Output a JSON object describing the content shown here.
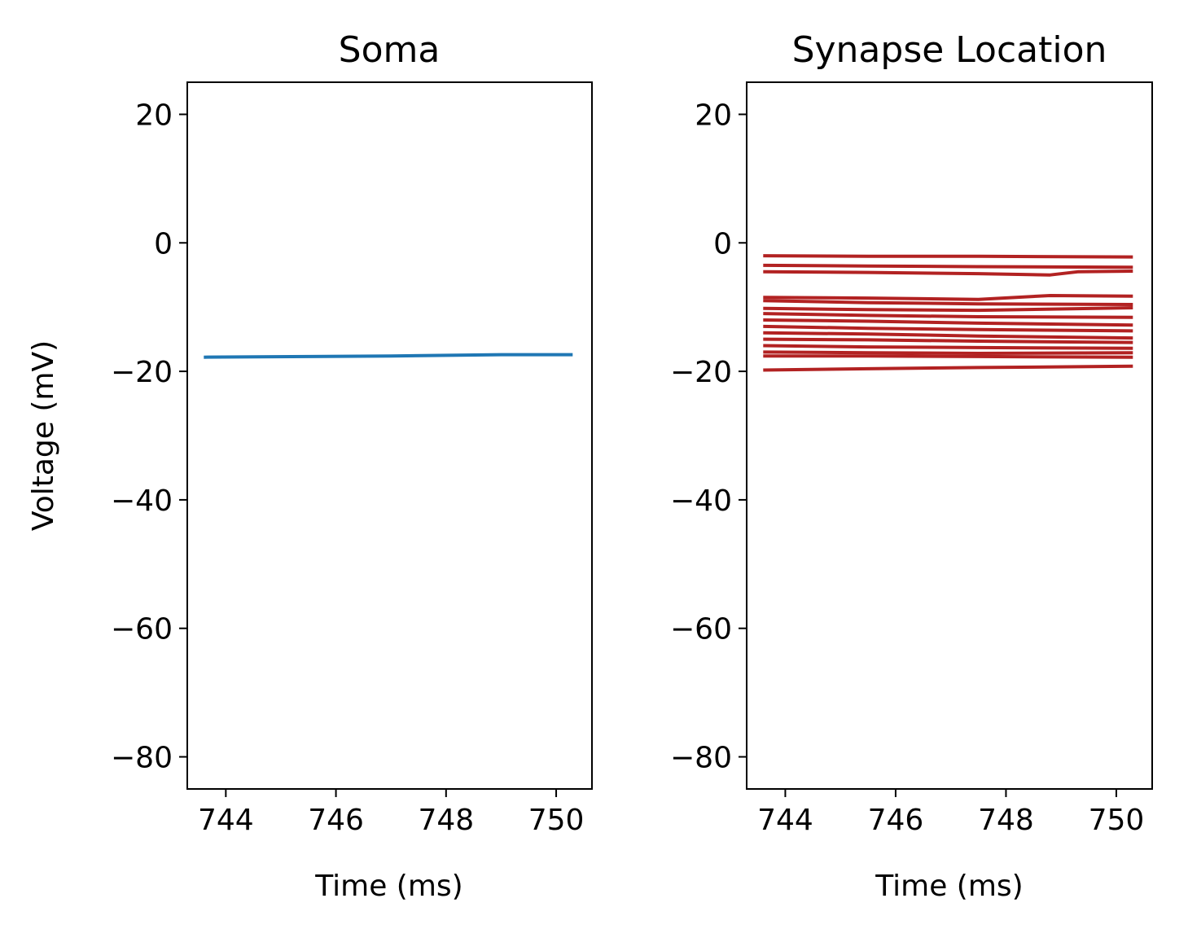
{
  "chart_data": [
    {
      "type": "line",
      "title": "Soma",
      "xlabel": "Time (ms)",
      "ylabel": "Voltage (mV)",
      "xlim": [
        743.3,
        750.65
      ],
      "ylim": [
        -85,
        25
      ],
      "xticks": [
        744,
        746,
        748,
        750
      ],
      "xtick_labels": [
        "744",
        "746",
        "748",
        "750"
      ],
      "yticks": [
        20,
        0,
        -20,
        -40,
        -60,
        -80
      ],
      "ytick_labels": [
        "20",
        "0",
        "−20",
        "−40",
        "−60",
        "−80"
      ],
      "grid": false,
      "series": [
        {
          "color": "#1f77b4",
          "x": [
            743.6,
            745.5,
            747.0,
            749.0,
            750.3
          ],
          "y": [
            -17.8,
            -17.7,
            -17.6,
            -17.4,
            -17.4
          ]
        }
      ]
    },
    {
      "type": "line",
      "title": "Synapse Location",
      "xlabel": "Time (ms)",
      "ylabel": "",
      "xlim": [
        743.3,
        750.65
      ],
      "ylim": [
        -85,
        25
      ],
      "xticks": [
        744,
        746,
        748,
        750
      ],
      "xtick_labels": [
        "744",
        "746",
        "748",
        "750"
      ],
      "yticks": [
        20,
        0,
        -20,
        -40,
        -60,
        -80
      ],
      "ytick_labels": [
        "20",
        "0",
        "−20",
        "−40",
        "−60",
        "−80"
      ],
      "grid": false,
      "series": [
        {
          "color": "#b22222",
          "x": [
            743.6,
            745.5,
            747.5,
            750.3
          ],
          "y": [
            -2.0,
            -2.1,
            -2.1,
            -2.2
          ]
        },
        {
          "color": "#b22222",
          "x": [
            743.6,
            745.5,
            747.5,
            750.3
          ],
          "y": [
            -3.5,
            -3.6,
            -3.7,
            -3.8
          ]
        },
        {
          "color": "#b22222",
          "x": [
            743.6,
            745.5,
            747.5,
            748.8,
            749.3,
            750.3
          ],
          "y": [
            -4.5,
            -4.6,
            -4.8,
            -5.0,
            -4.5,
            -4.4
          ]
        },
        {
          "color": "#b22222",
          "x": [
            743.6,
            745.5,
            747.5,
            748.8,
            750.3
          ],
          "y": [
            -8.5,
            -8.6,
            -8.8,
            -8.2,
            -8.3
          ]
        },
        {
          "color": "#b22222",
          "x": [
            743.6,
            745.5,
            747.5,
            750.3
          ],
          "y": [
            -9.0,
            -9.3,
            -9.5,
            -9.6
          ]
        },
        {
          "color": "#b22222",
          "x": [
            743.6,
            745.5,
            747.5,
            750.3
          ],
          "y": [
            -10.2,
            -10.4,
            -10.5,
            -10.1
          ]
        },
        {
          "color": "#b22222",
          "x": [
            743.6,
            745.5,
            747.5,
            750.3
          ],
          "y": [
            -11.0,
            -11.3,
            -11.5,
            -11.6
          ]
        },
        {
          "color": "#b22222",
          "x": [
            743.6,
            745.5,
            747.5,
            750.3
          ],
          "y": [
            -12.0,
            -12.2,
            -12.5,
            -12.8
          ]
        },
        {
          "color": "#b22222",
          "x": [
            743.6,
            745.5,
            747.5,
            750.3
          ],
          "y": [
            -13.0,
            -13.3,
            -13.5,
            -13.7
          ]
        },
        {
          "color": "#b22222",
          "x": [
            743.6,
            745.5,
            747.5,
            750.3
          ],
          "y": [
            -14.0,
            -14.2,
            -14.5,
            -14.8
          ]
        },
        {
          "color": "#b22222",
          "x": [
            743.6,
            745.5,
            747.5,
            750.3
          ],
          "y": [
            -15.0,
            -15.1,
            -15.3,
            -15.5
          ]
        },
        {
          "color": "#b22222",
          "x": [
            743.6,
            745.5,
            747.5,
            750.3
          ],
          "y": [
            -16.0,
            -16.2,
            -16.3,
            -16.4
          ]
        },
        {
          "color": "#b22222",
          "x": [
            743.6,
            745.5,
            747.5,
            750.3
          ],
          "y": [
            -17.0,
            -17.1,
            -17.2,
            -17.1
          ]
        },
        {
          "color": "#b22222",
          "x": [
            743.6,
            745.5,
            747.5,
            750.3
          ],
          "y": [
            -17.6,
            -17.6,
            -17.7,
            -17.8
          ]
        },
        {
          "color": "#b22222",
          "x": [
            743.6,
            745.5,
            747.5,
            750.3
          ],
          "y": [
            -19.8,
            -19.6,
            -19.4,
            -19.2
          ]
        }
      ]
    }
  ]
}
